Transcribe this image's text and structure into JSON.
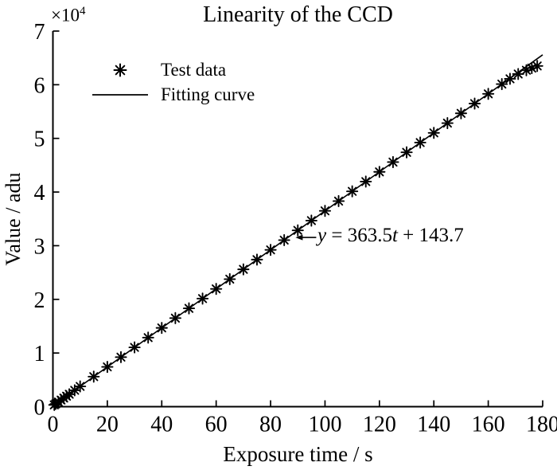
{
  "chart_data": {
    "type": "scatter+line",
    "title": "Linearity of the CCD",
    "xlabel": "Exposure time / s",
    "ylabel": "Value / adu",
    "y_axis_multiplier": {
      "base": "×10",
      "exponent": "4"
    },
    "axes": {
      "xlim": [
        0,
        180
      ],
      "ylim": [
        0,
        70000
      ],
      "grid": false,
      "box": false
    },
    "xticks": {
      "values": [
        0,
        20,
        40,
        60,
        80,
        100,
        120,
        140,
        160,
        180
      ],
      "labels": [
        "0",
        "20",
        "40",
        "60",
        "80",
        "100",
        "120",
        "140",
        "160",
        "180"
      ]
    },
    "yticks": {
      "values": [
        0,
        10000,
        20000,
        30000,
        40000,
        50000,
        60000,
        70000
      ],
      "labels": [
        "0",
        "1",
        "2",
        "3",
        "4",
        "5",
        "6",
        "7"
      ]
    },
    "legend": {
      "position": "upper-left-inside",
      "entries": [
        {
          "label": "Test data",
          "marker": "asterisk"
        },
        {
          "label": "Fitting curve",
          "marker": "line"
        }
      ]
    },
    "series": [
      {
        "name": "Test data",
        "type": "scatter",
        "marker": "asterisk",
        "color": "#000000",
        "points": [
          [
            0.5,
            330
          ],
          [
            1,
            510
          ],
          [
            2,
            870
          ],
          [
            3,
            1230
          ],
          [
            4,
            1600
          ],
          [
            5,
            1960
          ],
          [
            6,
            2320
          ],
          [
            8,
            3050
          ],
          [
            10,
            3780
          ],
          [
            15,
            5600
          ],
          [
            20,
            7410
          ],
          [
            25,
            9230
          ],
          [
            30,
            11050
          ],
          [
            35,
            12870
          ],
          [
            40,
            14680
          ],
          [
            45,
            16500
          ],
          [
            50,
            18320
          ],
          [
            55,
            20140
          ],
          [
            60,
            21950
          ],
          [
            65,
            23770
          ],
          [
            70,
            25590
          ],
          [
            75,
            27410
          ],
          [
            80,
            29220
          ],
          [
            85,
            31040
          ],
          [
            90,
            32860
          ],
          [
            95,
            34680
          ],
          [
            100,
            36490
          ],
          [
            105,
            38310
          ],
          [
            110,
            40130
          ],
          [
            115,
            41950
          ],
          [
            120,
            43760
          ],
          [
            125,
            45580
          ],
          [
            130,
            47400
          ],
          [
            135,
            49220
          ],
          [
            140,
            51030
          ],
          [
            145,
            52850
          ],
          [
            150,
            54670
          ],
          [
            155,
            56490
          ],
          [
            160,
            58300
          ],
          [
            165,
            60120
          ],
          [
            168,
            61100
          ],
          [
            171,
            62000
          ],
          [
            174,
            62700
          ],
          [
            176,
            63100
          ],
          [
            178,
            63500
          ]
        ]
      },
      {
        "name": "Fitting curve",
        "type": "line",
        "color": "#000000",
        "fit": {
          "slope": 363.5,
          "intercept": 143.7,
          "x_range": [
            0,
            180
          ]
        }
      }
    ],
    "annotation": {
      "full_text": "y = 363.5t + 143.7",
      "parts": {
        "var_y": "y",
        "equals": " = ",
        "slope": "363.5",
        "var_t": "t",
        "plus": " + ",
        "intercept": "143.7"
      },
      "arrow_target_t": 88
    }
  }
}
